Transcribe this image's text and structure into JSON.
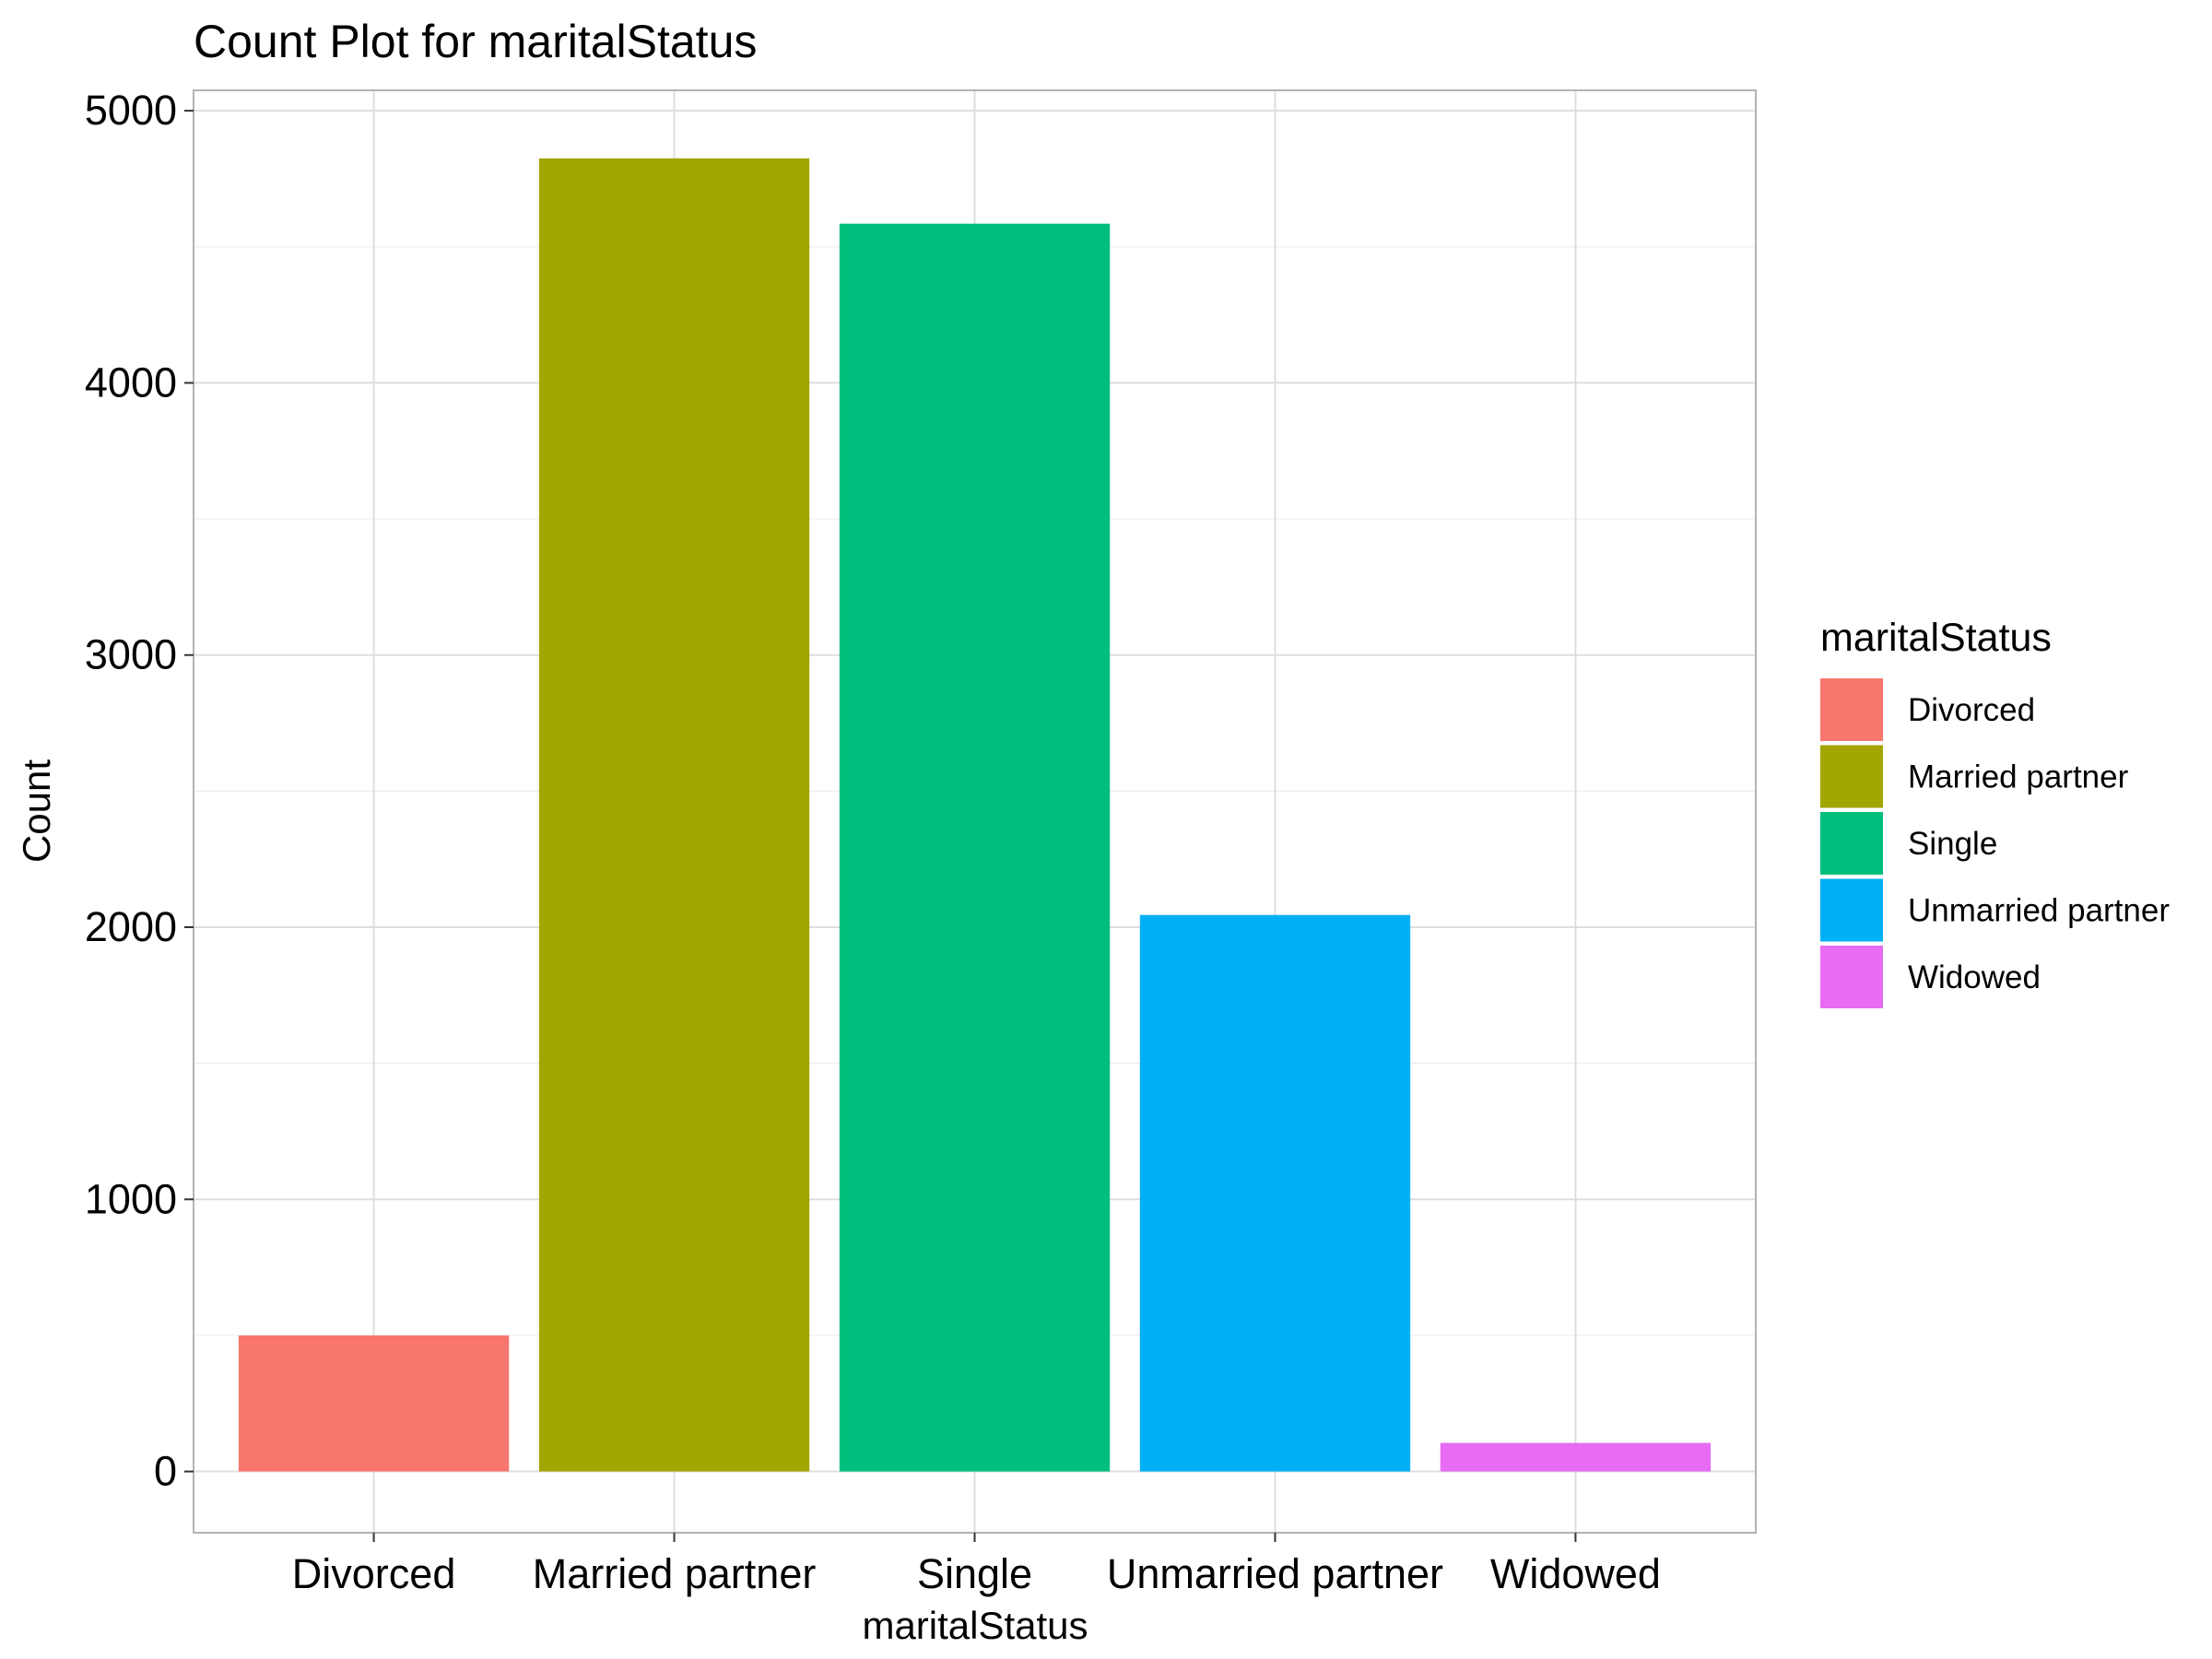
{
  "chart_data": {
    "type": "bar",
    "title": "Count Plot for maritalStatus",
    "xlabel": "maritalStatus",
    "ylabel": "Count",
    "categories": [
      "Divorced",
      "Married partner",
      "Single",
      "Unmarried partner",
      "Widowed"
    ],
    "values": [
      500,
      4825,
      4585,
      2045,
      105
    ],
    "colors": [
      "#F8766D",
      "#A3A500",
      "#00BF7D",
      "#00B0F6",
      "#E76BF3"
    ],
    "ylim": [
      -225,
      5075
    ],
    "yticks": [
      0,
      1000,
      2000,
      3000,
      4000,
      5000
    ],
    "ytick_labels": [
      "0",
      "1000",
      "2000",
      "3000",
      "4000",
      "5000"
    ],
    "grid": true,
    "legend": {
      "title": "maritalStatus",
      "position": "right",
      "entries": [
        "Divorced",
        "Married partner",
        "Single",
        "Unmarried partner",
        "Widowed"
      ]
    }
  }
}
